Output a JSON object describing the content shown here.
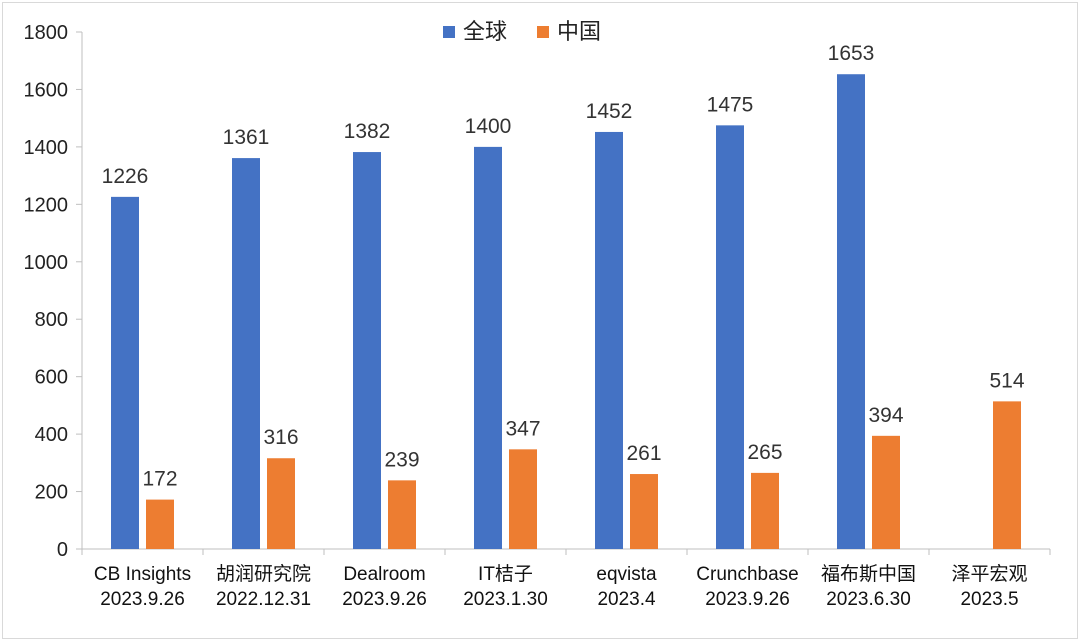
{
  "chart_data": {
    "type": "bar",
    "title": "",
    "xlabel": "",
    "ylabel": "",
    "ylim": [
      0,
      1800
    ],
    "yticks": [
      0,
      200,
      400,
      600,
      800,
      1000,
      1200,
      1400,
      1600,
      1800
    ],
    "grid": false,
    "legend_position": "top-center",
    "categories": [
      [
        "CB Insights",
        "2023.9.26"
      ],
      [
        "胡润研究院",
        "2022.12.31"
      ],
      [
        "Dealroom",
        "2023.9.26"
      ],
      [
        "IT桔子",
        "2023.1.30"
      ],
      [
        "eqvista",
        "2023.4"
      ],
      [
        "Crunchbase",
        "2023.9.26"
      ],
      [
        "福布斯中国",
        "2023.6.30"
      ],
      [
        "泽平宏观",
        "2023.5"
      ]
    ],
    "series": [
      {
        "name": "全球",
        "color": "#4472c4",
        "values": [
          1226,
          1361,
          1382,
          1400,
          1452,
          1475,
          1653,
          null
        ]
      },
      {
        "name": "中国",
        "color": "#ed7d31",
        "values": [
          172,
          316,
          239,
          347,
          261,
          265,
          394,
          514
        ]
      }
    ]
  }
}
